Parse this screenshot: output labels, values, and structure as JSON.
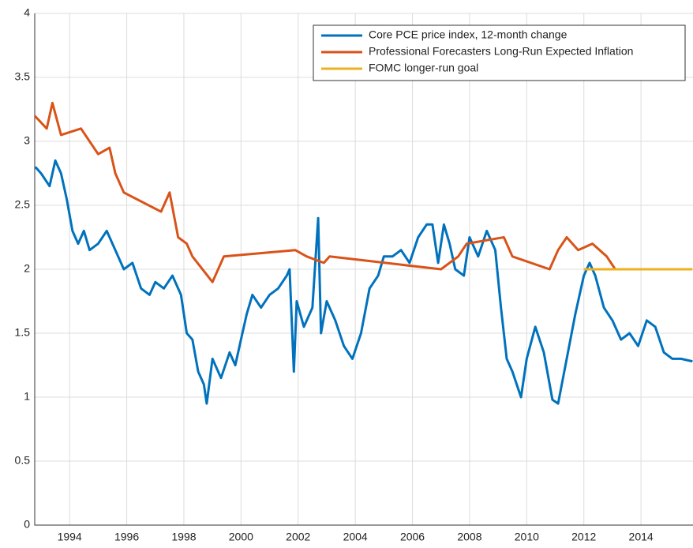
{
  "chart_data": {
    "type": "line",
    "xlim": [
      1992.78,
      2015.82
    ],
    "ylim": [
      0,
      4
    ],
    "xticks": [
      1994,
      1996,
      1998,
      2000,
      2002,
      2004,
      2006,
      2008,
      2010,
      2012,
      2014
    ],
    "yticks": [
      0,
      0.5,
      1,
      1.5,
      2,
      2.5,
      3,
      3.5,
      4
    ],
    "grid": true,
    "legend": "northeast",
    "series": [
      {
        "name": "Core PCE price index, 12-month change",
        "color": "#0072BD",
        "x": [
          1992.8,
          1993.0,
          1993.3,
          1993.5,
          1993.7,
          1993.9,
          1994.1,
          1994.3,
          1994.5,
          1994.7,
          1995.0,
          1995.3,
          1995.6,
          1995.9,
          1996.2,
          1996.5,
          1996.8,
          1997.0,
          1997.3,
          1997.6,
          1997.9,
          1998.1,
          1998.3,
          1998.5,
          1998.7,
          1998.8,
          1999.0,
          1999.3,
          1999.6,
          1999.8,
          2000.0,
          2000.2,
          2000.4,
          2000.7,
          2001.0,
          2001.3,
          2001.6,
          2001.7,
          2001.85,
          2001.95,
          2002.2,
          2002.5,
          2002.7,
          2002.8,
          2003.0,
          2003.3,
          2003.6,
          2003.9,
          2004.2,
          2004.5,
          2004.8,
          2005.0,
          2005.3,
          2005.6,
          2005.9,
          2006.2,
          2006.5,
          2006.7,
          2006.9,
          2007.1,
          2007.3,
          2007.5,
          2007.8,
          2008.0,
          2008.3,
          2008.6,
          2008.9,
          2009.1,
          2009.3,
          2009.5,
          2009.8,
          2010.0,
          2010.3,
          2010.6,
          2010.9,
          2011.1,
          2011.4,
          2011.7,
          2012.0,
          2012.2,
          2012.4,
          2012.7,
          2013.0,
          2013.3,
          2013.6,
          2013.9,
          2014.2,
          2014.5,
          2014.8,
          2015.1,
          2015.4,
          2015.8
        ],
        "values": [
          2.8,
          2.75,
          2.65,
          2.85,
          2.75,
          2.55,
          2.3,
          2.2,
          2.3,
          2.15,
          2.2,
          2.3,
          2.15,
          2.0,
          2.05,
          1.85,
          1.8,
          1.9,
          1.85,
          1.95,
          1.8,
          1.5,
          1.45,
          1.2,
          1.1,
          0.95,
          1.3,
          1.15,
          1.35,
          1.25,
          1.45,
          1.65,
          1.8,
          1.7,
          1.8,
          1.85,
          1.95,
          2.0,
          1.2,
          1.75,
          1.55,
          1.7,
          2.4,
          1.5,
          1.75,
          1.6,
          1.4,
          1.3,
          1.5,
          1.85,
          1.95,
          2.1,
          2.1,
          2.15,
          2.05,
          2.25,
          2.35,
          2.35,
          2.05,
          2.35,
          2.2,
          2.0,
          1.95,
          2.25,
          2.1,
          2.3,
          2.15,
          1.7,
          1.3,
          1.2,
          1.0,
          1.3,
          1.55,
          1.35,
          0.98,
          0.95,
          1.3,
          1.65,
          1.95,
          2.05,
          1.95,
          1.7,
          1.6,
          1.45,
          1.5,
          1.4,
          1.6,
          1.55,
          1.35,
          1.3,
          1.3,
          1.28
        ]
      },
      {
        "name": "Professional Forecasters Long-Run Expected Inflation",
        "color": "#D95319",
        "x": [
          1992.78,
          1993.2,
          1993.4,
          1993.7,
          1994.4,
          1995.0,
          1995.4,
          1995.6,
          1995.9,
          1997.2,
          1997.5,
          1997.8,
          1998.1,
          1998.3,
          1999.0,
          1999.4,
          2001.9,
          2002.3,
          2002.9,
          2003.1,
          2007.0,
          2007.6,
          2007.9,
          2009.2,
          2009.5,
          2010.8,
          2011.1,
          2011.4,
          2011.8,
          2012.3,
          2012.8,
          2013.1
        ],
        "values": [
          3.2,
          3.1,
          3.3,
          3.05,
          3.1,
          2.9,
          2.95,
          2.75,
          2.6,
          2.45,
          2.6,
          2.25,
          2.2,
          2.1,
          1.9,
          2.1,
          2.15,
          2.1,
          2.05,
          2.1,
          2.0,
          2.1,
          2.2,
          2.25,
          2.1,
          2.0,
          2.15,
          2.25,
          2.15,
          2.2,
          2.1,
          2.0
        ]
      },
      {
        "name": "FOMC longer-run goal",
        "color": "#EDB120",
        "x": [
          2012.0,
          2015.8
        ],
        "values": [
          2.0,
          2.0
        ]
      }
    ]
  }
}
